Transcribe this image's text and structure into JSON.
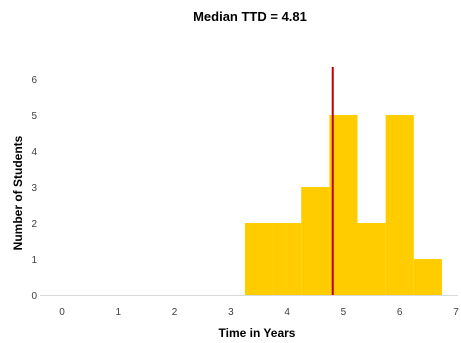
{
  "chart_data": {
    "type": "bar",
    "title": "Median TTD = 4.81",
    "xlabel": "Time in Years",
    "ylabel": "Number of Students",
    "xlim": [
      0,
      7
    ],
    "ylim": [
      0,
      6
    ],
    "x_ticks": [
      "0",
      "1",
      "2",
      "3",
      "4",
      "5",
      "6",
      "7"
    ],
    "y_ticks": [
      "0",
      "1",
      "2",
      "3",
      "4",
      "5",
      "6"
    ],
    "bins": [
      {
        "start": 3.25,
        "end": 3.75,
        "count": 2
      },
      {
        "start": 3.75,
        "end": 4.25,
        "count": 2
      },
      {
        "start": 4.25,
        "end": 4.75,
        "count": 3
      },
      {
        "start": 4.75,
        "end": 5.25,
        "count": 5
      },
      {
        "start": 5.25,
        "end": 5.75,
        "count": 2
      },
      {
        "start": 5.75,
        "end": 6.25,
        "count": 5
      },
      {
        "start": 6.25,
        "end": 6.75,
        "count": 1
      }
    ],
    "median_line": {
      "x": 4.81
    },
    "grid": false,
    "legend": "none",
    "colors": {
      "bars": "#FFCC00",
      "median": "#C00000",
      "axis": "#D9D9D9"
    }
  }
}
